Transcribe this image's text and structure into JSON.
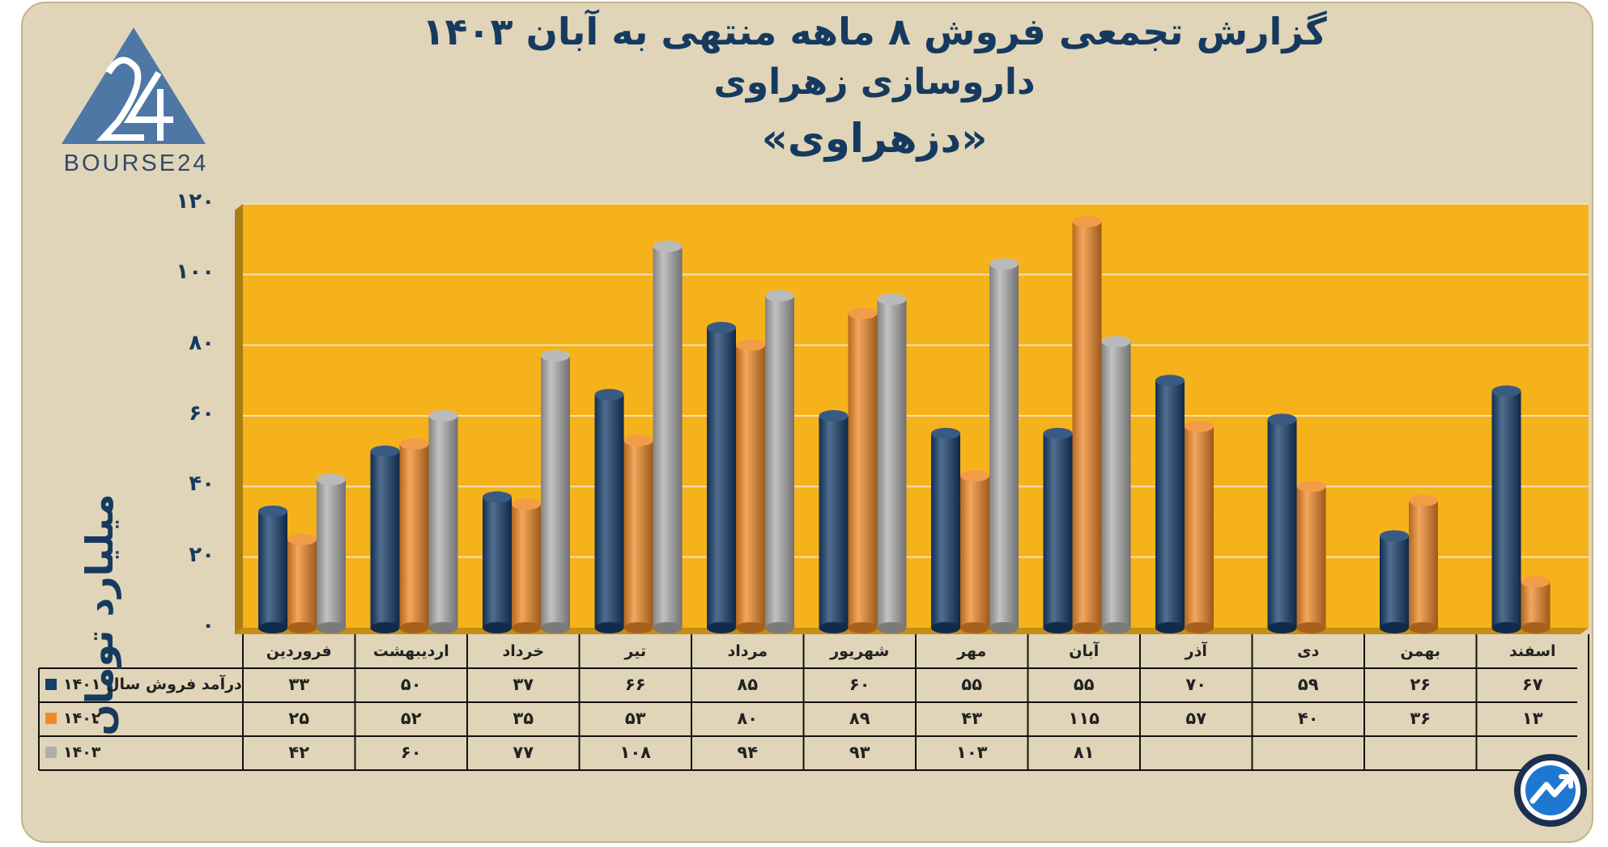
{
  "titles": {
    "line1": "گزارش تجمعی فروش ۸ ماهه منتهی به آبان ۱۴۰۳",
    "line2": "داروسازی زهراوی",
    "line3": "«دزهراوی»"
  },
  "brand": {
    "logo_text": "BOURSE24",
    "logo_mark": "24"
  },
  "colors": {
    "plot_bg": "#f6b21b",
    "frame_bg": "#e0d5b8",
    "series_1401": "#173e6b",
    "series_1402": "#f08a28",
    "series_1403": "#aeaeae",
    "text_dark": "#163a5f"
  },
  "y_tick_labels": [
    "۰",
    "۲۰",
    "۴۰",
    "۶۰",
    "۸۰",
    "۱۰۰",
    "۱۲۰"
  ],
  "chart_data": {
    "type": "bar",
    "title": "گزارش تجمعی فروش ۸ ماهه منتهی به آبان ۱۴۰۳",
    "subtitle": "داروسازی زهراوی «دزهراوی»",
    "ylabel": "میلیارد تومان",
    "xlabel": "",
    "ylim": [
      0,
      120
    ],
    "yticks": [
      0,
      20,
      40,
      60,
      80,
      100,
      120
    ],
    "grid": true,
    "legend": "table-left",
    "categories": [
      "فروردین",
      "اردیبهشت",
      "خرداد",
      "تیر",
      "مرداد",
      "شهریور",
      "مهر",
      "آبان",
      "آذر",
      "دی",
      "بهمن",
      "اسفند"
    ],
    "series": [
      {
        "name": "درآمد فروش سال ۱۴۰۱",
        "color": "#173e6b",
        "values": [
          33,
          50,
          37,
          66,
          85,
          60,
          55,
          55,
          70,
          59,
          26,
          67
        ],
        "labels": [
          "۳۳",
          "۵۰",
          "۳۷",
          "۶۶",
          "۸۵",
          "۶۰",
          "۵۵",
          "۵۵",
          "۷۰",
          "۵۹",
          "۲۶",
          "۶۷"
        ]
      },
      {
        "name": "۱۴۰۲",
        "color": "#f08a28",
        "values": [
          25,
          52,
          35,
          53,
          80,
          89,
          43,
          115,
          57,
          40,
          36,
          13
        ],
        "labels": [
          "۲۵",
          "۵۲",
          "۳۵",
          "۵۳",
          "۸۰",
          "۸۹",
          "۴۳",
          "۱۱۵",
          "۵۷",
          "۴۰",
          "۳۶",
          "۱۳"
        ]
      },
      {
        "name": "۱۴۰۳",
        "color": "#aeaeae",
        "values": [
          42,
          60,
          77,
          108,
          94,
          93,
          103,
          81,
          null,
          null,
          null,
          null
        ],
        "labels": [
          "۴۲",
          "۶۰",
          "۷۷",
          "۱۰۸",
          "۹۴",
          "۹۳",
          "۱۰۳",
          "۸۱",
          "",
          "",
          "",
          ""
        ]
      }
    ]
  }
}
